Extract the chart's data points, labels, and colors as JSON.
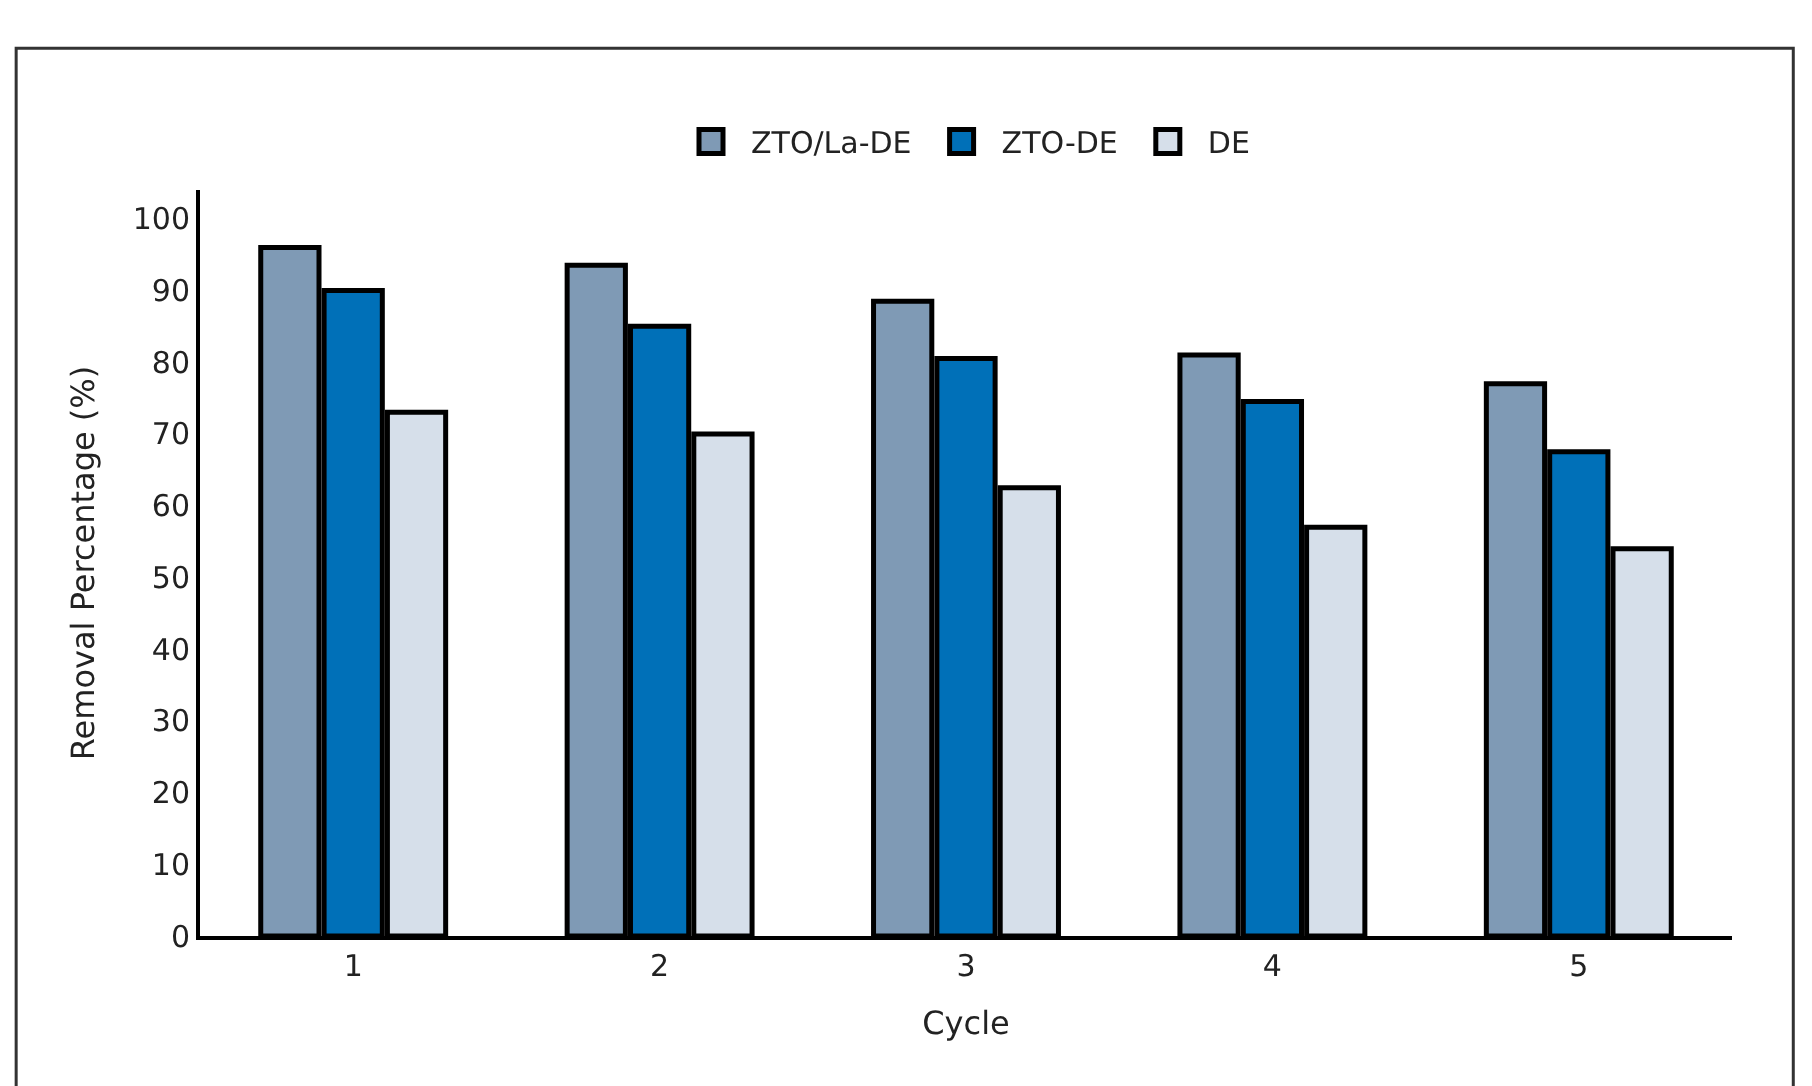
{
  "chart_data": {
    "type": "bar",
    "xlabel": "Cycle",
    "ylabel": "Removal Percentage (%)",
    "categories": [
      "1",
      "2",
      "3",
      "4",
      "5"
    ],
    "series": [
      {
        "name": "ZTO/La-DE",
        "color": "#7f9ab5",
        "values": [
          96,
          93.5,
          88.5,
          81,
          77
        ]
      },
      {
        "name": "ZTO-DE",
        "color": "#0070b8",
        "values": [
          90,
          85,
          80.5,
          74.5,
          67.5
        ]
      },
      {
        "name": "DE",
        "color": "#d6dfea",
        "values": [
          73,
          70,
          62.5,
          57,
          54
        ]
      }
    ],
    "ylim": [
      0,
      104
    ],
    "yticks": [
      0,
      10,
      20,
      30,
      40,
      50,
      60,
      70,
      80,
      90,
      100
    ],
    "legend": "top"
  }
}
